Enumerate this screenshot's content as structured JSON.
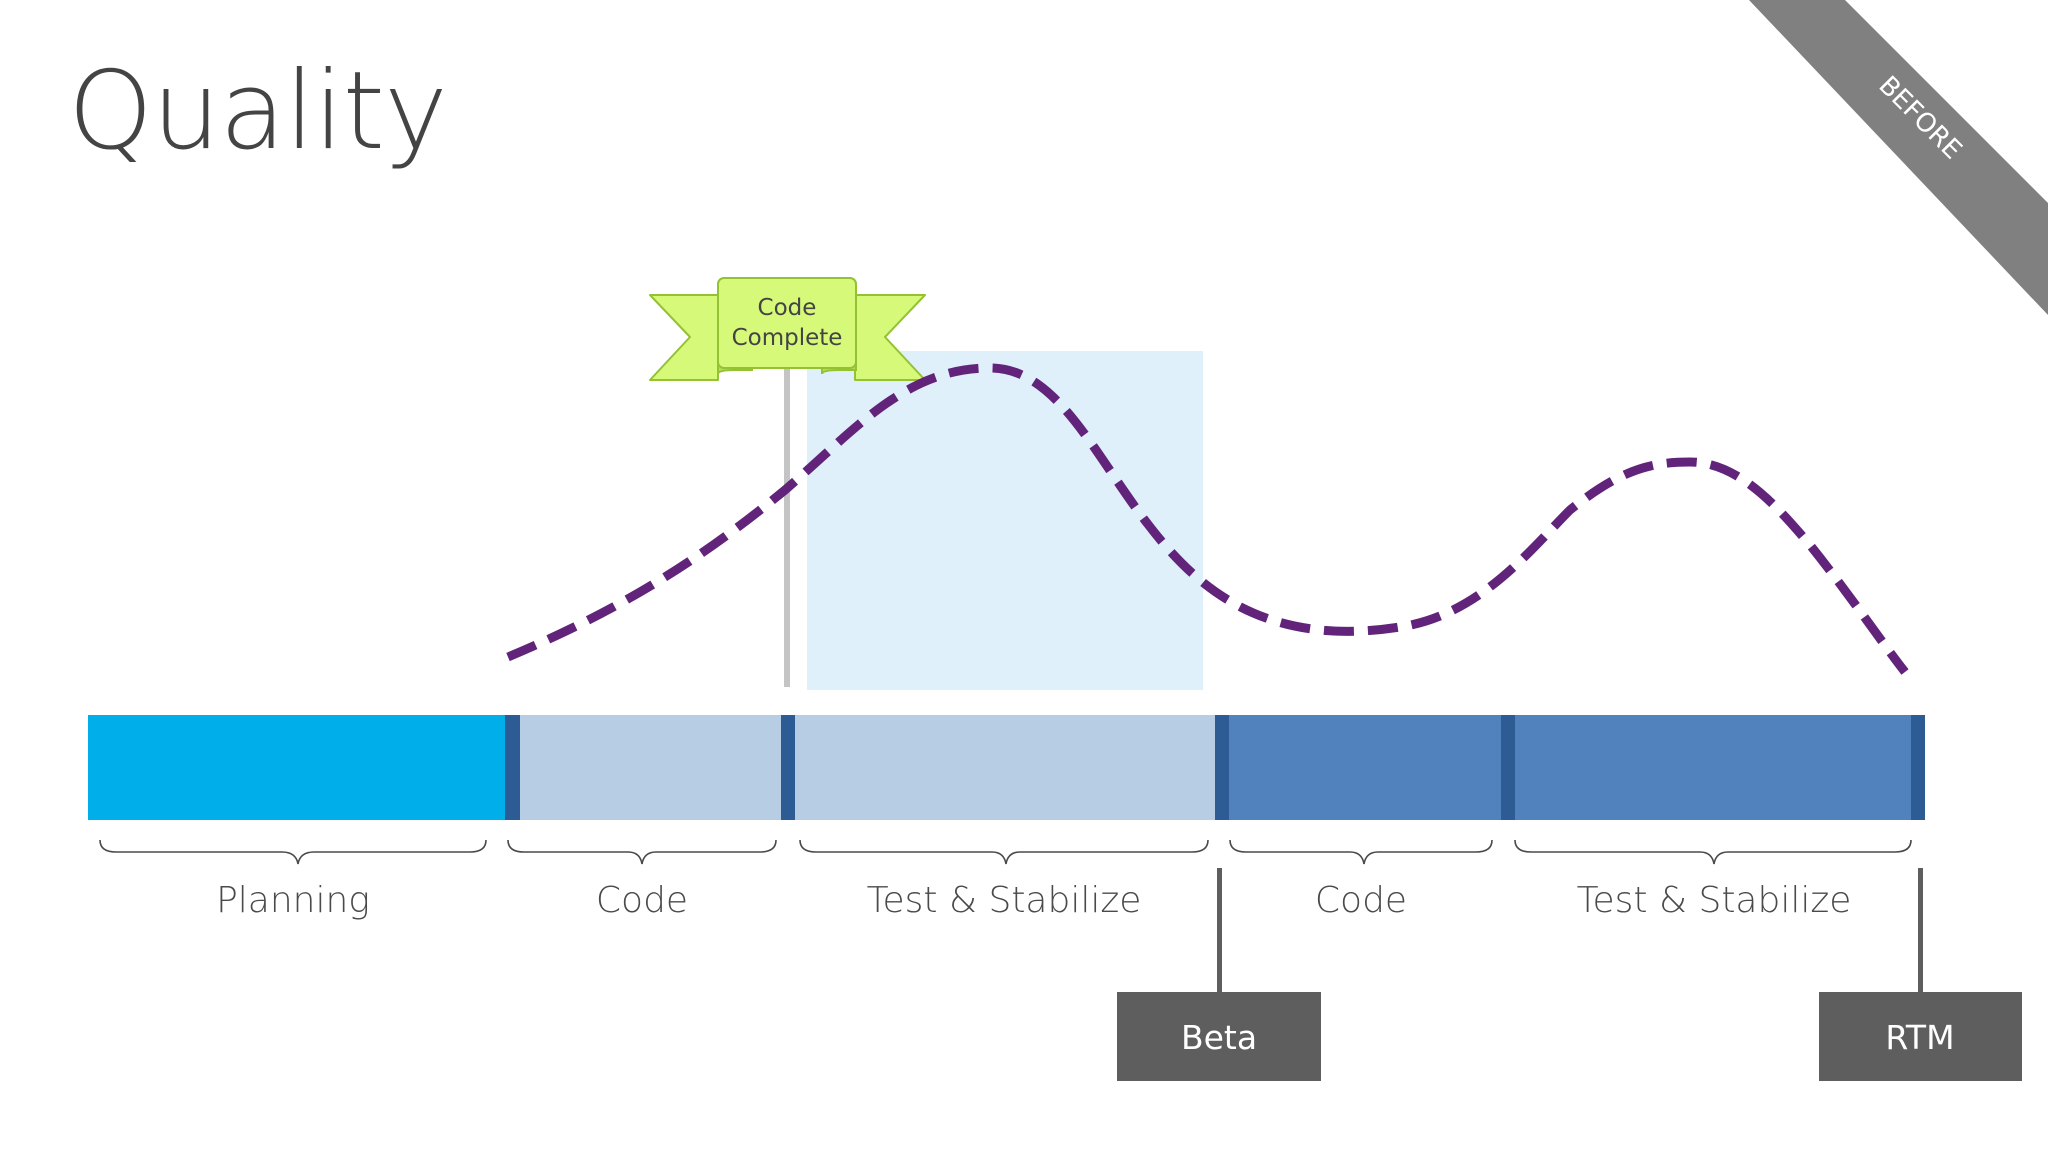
{
  "slide": {
    "title": "Quality",
    "corner_banner": "BEFORE"
  },
  "flag": {
    "line1": "Code",
    "line2": "Complete"
  },
  "phases": [
    {
      "label": "Planning",
      "color": "#00aeea"
    },
    {
      "label": "Code",
      "color": "#b7cde4"
    },
    {
      "label": "Test & Stabilize",
      "color": "#b7cde4"
    },
    {
      "label": "Code",
      "color": "#5182bd"
    },
    {
      "label": "Test & Stabilize",
      "color": "#5182bd"
    }
  ],
  "milestones": [
    {
      "label": "Beta"
    },
    {
      "label": "RTM"
    }
  ],
  "colors": {
    "curve": "#61247a",
    "highlight": "#dff0fb",
    "divider": "#2d5c95",
    "milestone_box": "#5e5e5e",
    "banner": "#808080",
    "flag_fill": "#d6f97a",
    "flag_stroke": "#94c233",
    "label_text": "#4a4a4a"
  }
}
